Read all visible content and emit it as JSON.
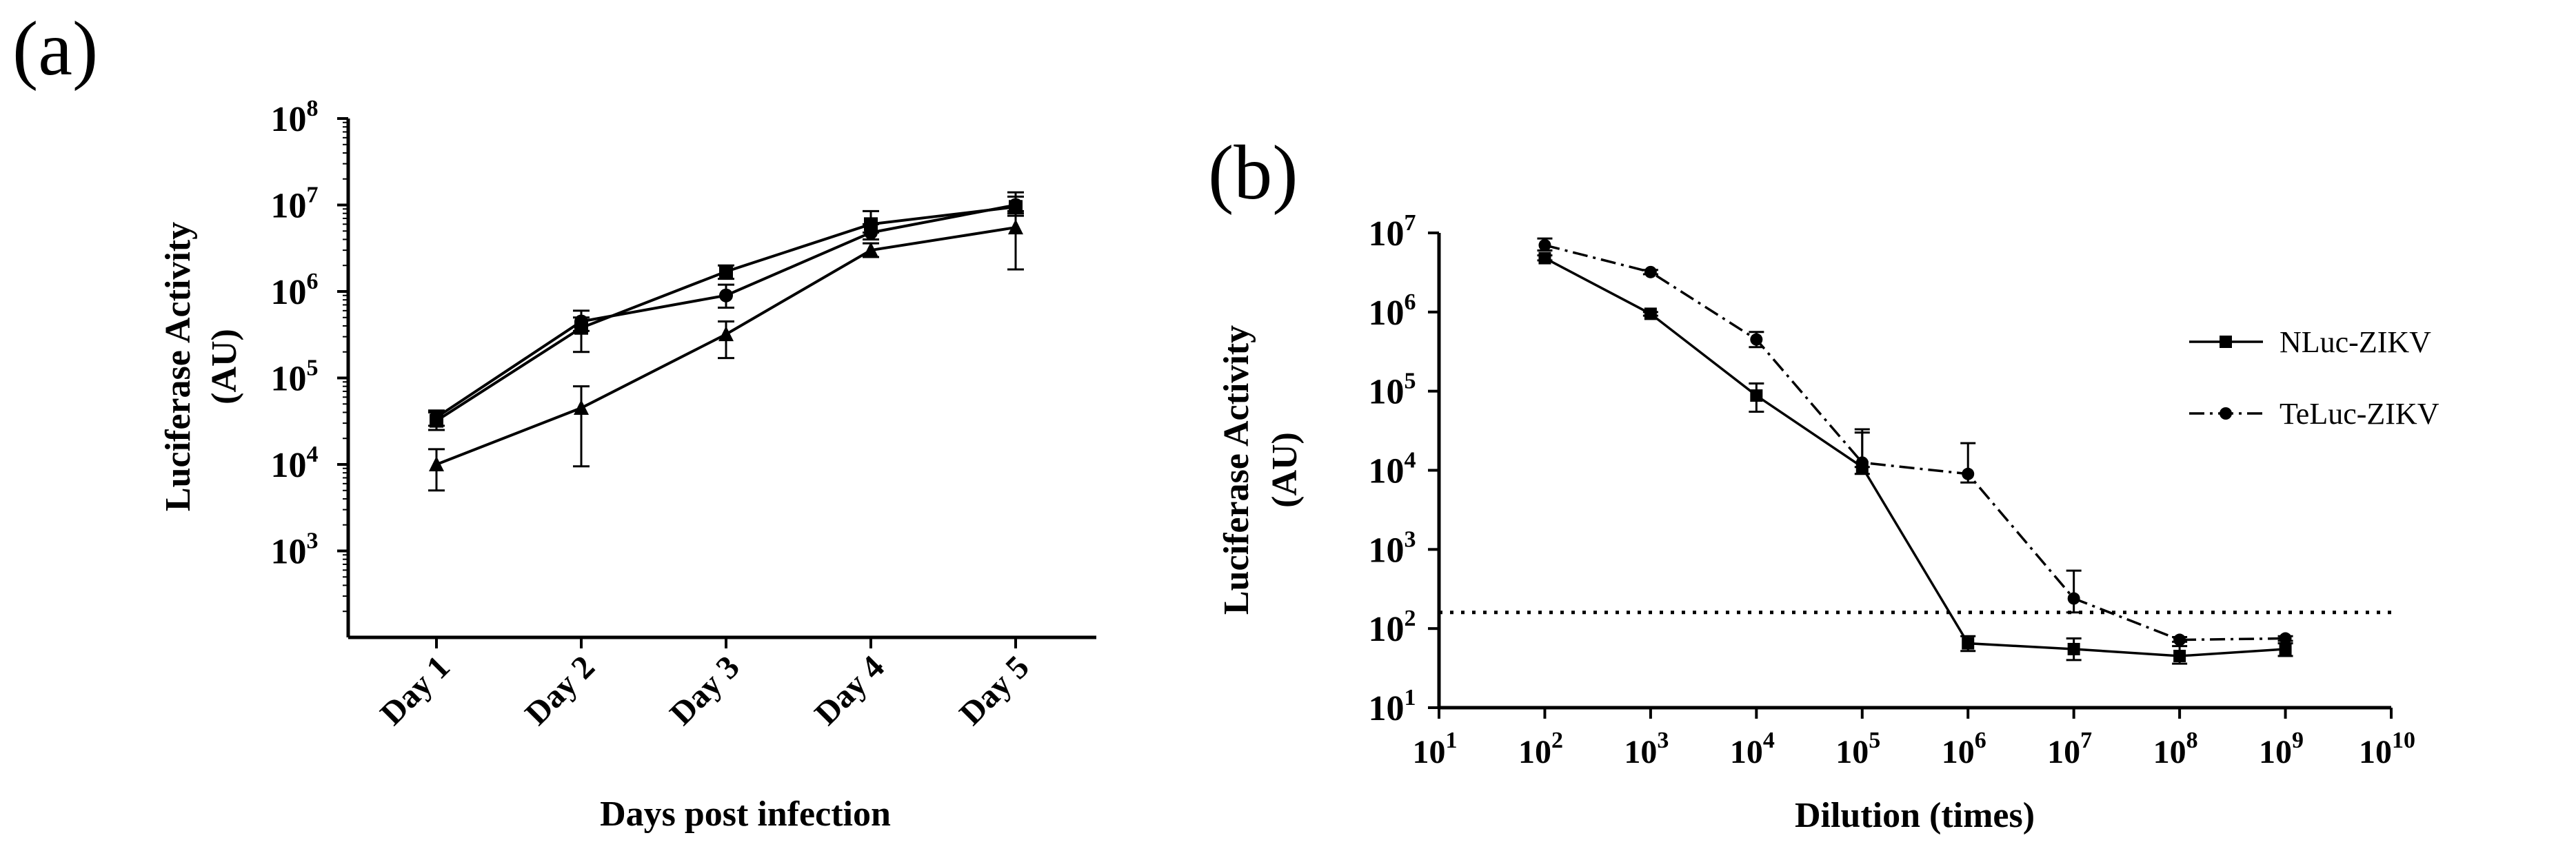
{
  "figure": {
    "panel_a_label": "(a)",
    "panel_b_label": "(b)"
  },
  "chart_data": [
    {
      "panel": "a",
      "type": "line",
      "xlabel": "Days post infection",
      "ylabel_line1": "Luciferase Activity",
      "ylabel_line2": "(AU)",
      "yscale": "log",
      "ylim": [
        100,
        100000000
      ],
      "ytick_base": "10",
      "yticks": [
        {
          "value": 1000,
          "exp": "3"
        },
        {
          "value": 10000,
          "exp": "4"
        },
        {
          "value": 100000,
          "exp": "5"
        },
        {
          "value": 1000000,
          "exp": "6"
        },
        {
          "value": 10000000,
          "exp": "7"
        },
        {
          "value": 100000000,
          "exp": "8"
        }
      ],
      "categories": [
        "Day 1",
        "Day 2",
        "Day 3",
        "Day 4",
        "Day 5"
      ],
      "series": [
        {
          "name": "series 1 (square)",
          "marker": "square",
          "values": [
            32000,
            380000,
            1700000,
            6000000,
            9500000
          ],
          "err": [
            [
              25000,
              40000
            ],
            [
              200000,
              500000
            ],
            [
              1400000,
              2000000
            ],
            [
              4800000,
              8500000
            ],
            [
              7500000,
              12500000
            ]
          ]
        },
        {
          "name": "series 2 (circle)",
          "marker": "circle",
          "values": [
            35000,
            450000,
            900000,
            4800000,
            10000000
          ],
          "err": [
            [
              28000,
              42000
            ],
            [
              350000,
              600000
            ],
            [
              650000,
              1200000
            ],
            [
              4000000,
              6000000
            ],
            [
              8000000,
              14000000
            ]
          ]
        },
        {
          "name": "series 3 (triangle)",
          "marker": "triangle",
          "values": [
            10000,
            45000,
            320000,
            3000000,
            5500000
          ],
          "err": [
            [
              5000,
              15000
            ],
            [
              9500,
              80000
            ],
            [
              170000,
              450000
            ],
            [
              2500000,
              3600000
            ],
            [
              1800000,
              8500000
            ]
          ]
        }
      ]
    },
    {
      "panel": "b",
      "type": "line",
      "xlabel": "Dilution (times)",
      "ylabel_line1": "Luciferase Activity",
      "ylabel_line2": "(AU)",
      "xscale": "log",
      "yscale": "log",
      "xlim": [
        10,
        10000000000
      ],
      "ylim": [
        10,
        10000000
      ],
      "tick_base": "10",
      "xticks": [
        {
          "value": 10,
          "exp": "1"
        },
        {
          "value": 100,
          "exp": "2"
        },
        {
          "value": 1000,
          "exp": "3"
        },
        {
          "value": 10000,
          "exp": "4"
        },
        {
          "value": 100000,
          "exp": "5"
        },
        {
          "value": 1000000,
          "exp": "6"
        },
        {
          "value": 10000000,
          "exp": "7"
        },
        {
          "value": 100000000,
          "exp": "8"
        },
        {
          "value": 1000000000,
          "exp": "9"
        },
        {
          "value": 10000000000,
          "exp": "10"
        }
      ],
      "yticks": [
        {
          "value": 10,
          "exp": "1"
        },
        {
          "value": 100,
          "exp": "2"
        },
        {
          "value": 1000,
          "exp": "3"
        },
        {
          "value": 10000,
          "exp": "4"
        },
        {
          "value": 100000,
          "exp": "5"
        },
        {
          "value": 1000000,
          "exp": "6"
        },
        {
          "value": 10000000,
          "exp": "7"
        }
      ],
      "threshold": 160,
      "legend_position": "right",
      "series": [
        {
          "name": "NLuc-ZIKV",
          "marker": "square",
          "style": "solid",
          "x": [
            100,
            1000,
            10000,
            100000,
            1000000,
            10000000,
            100000000,
            1000000000
          ],
          "values": [
            4800000,
            950000,
            88000,
            11000,
            65,
            55,
            45,
            55
          ],
          "err": [
            [
              4500000,
              5200000
            ],
            [
              900000,
              1000000
            ],
            [
              55000,
              125000
            ],
            [
              9000,
              30000
            ],
            [
              52,
              80
            ],
            [
              40,
              75
            ],
            [
              36,
              60
            ],
            [
              45,
              65
            ]
          ]
        },
        {
          "name": "TeLuc-ZIKV",
          "marker": "circle",
          "style": "dashdot",
          "x": [
            100,
            1000,
            10000,
            100000,
            1000000,
            10000000,
            100000000,
            1000000000
          ],
          "values": [
            7000000,
            3200000,
            450000,
            12500,
            9000,
            240,
            72,
            75
          ],
          "err": [
            [
              6000000,
              8500000
            ],
            [
              3000000,
              3400000
            ],
            [
              360000,
              560000
            ],
            [
              11000,
              33000
            ],
            [
              7000,
              22000
            ],
            [
              160,
              540
            ],
            [
              68,
              78
            ],
            [
              70,
              80
            ]
          ]
        }
      ]
    }
  ]
}
